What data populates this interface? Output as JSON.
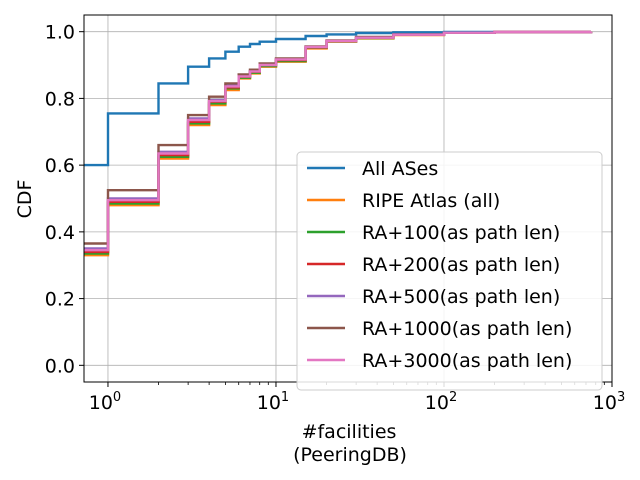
{
  "chart_data": {
    "type": "line",
    "xlabel": "#facilities",
    "xlabel2": "(PeeringDB)",
    "ylabel": "CDF",
    "xscale": "log",
    "xlim": [
      0.72,
      1000
    ],
    "ylim": [
      -0.05,
      1.05
    ],
    "xticks": [
      {
        "value": 1,
        "base": "10",
        "exp": "0"
      },
      {
        "value": 10,
        "base": "10",
        "exp": "1"
      },
      {
        "value": 100,
        "base": "10",
        "exp": "2"
      },
      {
        "value": 1000,
        "base": "10",
        "exp": "3"
      }
    ],
    "yticks": [
      {
        "value": 0.0,
        "label": "0.0"
      },
      {
        "value": 0.2,
        "label": "0.2"
      },
      {
        "value": 0.4,
        "label": "0.4"
      },
      {
        "value": 0.6,
        "label": "0.6"
      },
      {
        "value": 0.8,
        "label": "0.8"
      },
      {
        "value": 1.0,
        "label": "1.0"
      }
    ],
    "grid": true,
    "legend_position": "lower-right",
    "series": [
      {
        "name": "All ASes",
        "color": "#1f77b4",
        "steps": [
          [
            0.72,
            0.6
          ],
          [
            1,
            0.755
          ],
          [
            2,
            0.845
          ],
          [
            3,
            0.895
          ],
          [
            4,
            0.92
          ],
          [
            5,
            0.94
          ],
          [
            6,
            0.955
          ],
          [
            7,
            0.963
          ],
          [
            8,
            0.97
          ],
          [
            10,
            0.978
          ],
          [
            15,
            0.987
          ],
          [
            20,
            0.992
          ],
          [
            30,
            0.996
          ],
          [
            50,
            0.998
          ],
          [
            100,
            0.999
          ],
          [
            750,
            1.0
          ]
        ]
      },
      {
        "name": "RIPE Atlas (all)",
        "color": "#ff7f0e",
        "steps": [
          [
            0.72,
            0.33
          ],
          [
            1,
            0.48
          ],
          [
            2,
            0.62
          ],
          [
            3,
            0.72
          ],
          [
            4,
            0.78
          ],
          [
            5,
            0.825
          ],
          [
            6,
            0.86
          ],
          [
            7,
            0.875
          ],
          [
            8,
            0.895
          ],
          [
            10,
            0.91
          ],
          [
            15,
            0.95
          ],
          [
            20,
            0.97
          ],
          [
            30,
            0.98
          ],
          [
            50,
            0.99
          ],
          [
            100,
            0.997
          ],
          [
            200,
            0.999
          ],
          [
            750,
            1.0
          ]
        ]
      },
      {
        "name": "RA+100(as path len)",
        "color": "#2ca02c",
        "steps": [
          [
            0.72,
            0.335
          ],
          [
            1,
            0.485
          ],
          [
            2,
            0.625
          ],
          [
            3,
            0.725
          ],
          [
            4,
            0.785
          ],
          [
            5,
            0.83
          ],
          [
            6,
            0.862
          ],
          [
            7,
            0.877
          ],
          [
            8,
            0.897
          ],
          [
            10,
            0.912
          ],
          [
            15,
            0.952
          ],
          [
            20,
            0.971
          ],
          [
            30,
            0.981
          ],
          [
            50,
            0.991
          ],
          [
            100,
            0.997
          ],
          [
            200,
            0.999
          ],
          [
            750,
            1.0
          ]
        ]
      },
      {
        "name": "RA+200(as path len)",
        "color": "#d62728",
        "steps": [
          [
            0.72,
            0.34
          ],
          [
            1,
            0.49
          ],
          [
            2,
            0.63
          ],
          [
            3,
            0.73
          ],
          [
            4,
            0.79
          ],
          [
            5,
            0.833
          ],
          [
            6,
            0.865
          ],
          [
            7,
            0.88
          ],
          [
            8,
            0.9
          ],
          [
            10,
            0.915
          ],
          [
            15,
            0.953
          ],
          [
            20,
            0.972
          ],
          [
            30,
            0.982
          ],
          [
            50,
            0.991
          ],
          [
            100,
            0.997
          ],
          [
            200,
            0.999
          ],
          [
            750,
            1.0
          ]
        ]
      },
      {
        "name": "RA+500(as path len)",
        "color": "#9467bd",
        "steps": [
          [
            0.72,
            0.35
          ],
          [
            1,
            0.5
          ],
          [
            2,
            0.64
          ],
          [
            3,
            0.74
          ],
          [
            4,
            0.795
          ],
          [
            5,
            0.838
          ],
          [
            6,
            0.868
          ],
          [
            7,
            0.883
          ],
          [
            8,
            0.902
          ],
          [
            10,
            0.918
          ],
          [
            15,
            0.955
          ],
          [
            20,
            0.973
          ],
          [
            30,
            0.983
          ],
          [
            50,
            0.992
          ],
          [
            100,
            0.997
          ],
          [
            200,
            0.999
          ],
          [
            750,
            1.0
          ]
        ]
      },
      {
        "name": "RA+1000(as path len)",
        "color": "#8c564b",
        "steps": [
          [
            0.72,
            0.365
          ],
          [
            1,
            0.525
          ],
          [
            2,
            0.66
          ],
          [
            3,
            0.75
          ],
          [
            4,
            0.805
          ],
          [
            5,
            0.845
          ],
          [
            6,
            0.872
          ],
          [
            7,
            0.886
          ],
          [
            8,
            0.905
          ],
          [
            10,
            0.92
          ],
          [
            15,
            0.956
          ],
          [
            20,
            0.974
          ],
          [
            30,
            0.984
          ],
          [
            50,
            0.992
          ],
          [
            100,
            0.997
          ],
          [
            200,
            0.999
          ],
          [
            750,
            1.0
          ]
        ]
      },
      {
        "name": "RA+3000(as path len)",
        "color": "#e377c2",
        "steps": [
          [
            0.72,
            0.345
          ],
          [
            1,
            0.495
          ],
          [
            2,
            0.635
          ],
          [
            3,
            0.735
          ],
          [
            4,
            0.792
          ],
          [
            5,
            0.836
          ],
          [
            6,
            0.866
          ],
          [
            7,
            0.881
          ],
          [
            8,
            0.9
          ],
          [
            10,
            0.917
          ],
          [
            15,
            0.954
          ],
          [
            20,
            0.972
          ],
          [
            30,
            0.982
          ],
          [
            50,
            0.991
          ],
          [
            100,
            0.997
          ],
          [
            200,
            0.999
          ],
          [
            750,
            1.0
          ]
        ]
      }
    ]
  }
}
